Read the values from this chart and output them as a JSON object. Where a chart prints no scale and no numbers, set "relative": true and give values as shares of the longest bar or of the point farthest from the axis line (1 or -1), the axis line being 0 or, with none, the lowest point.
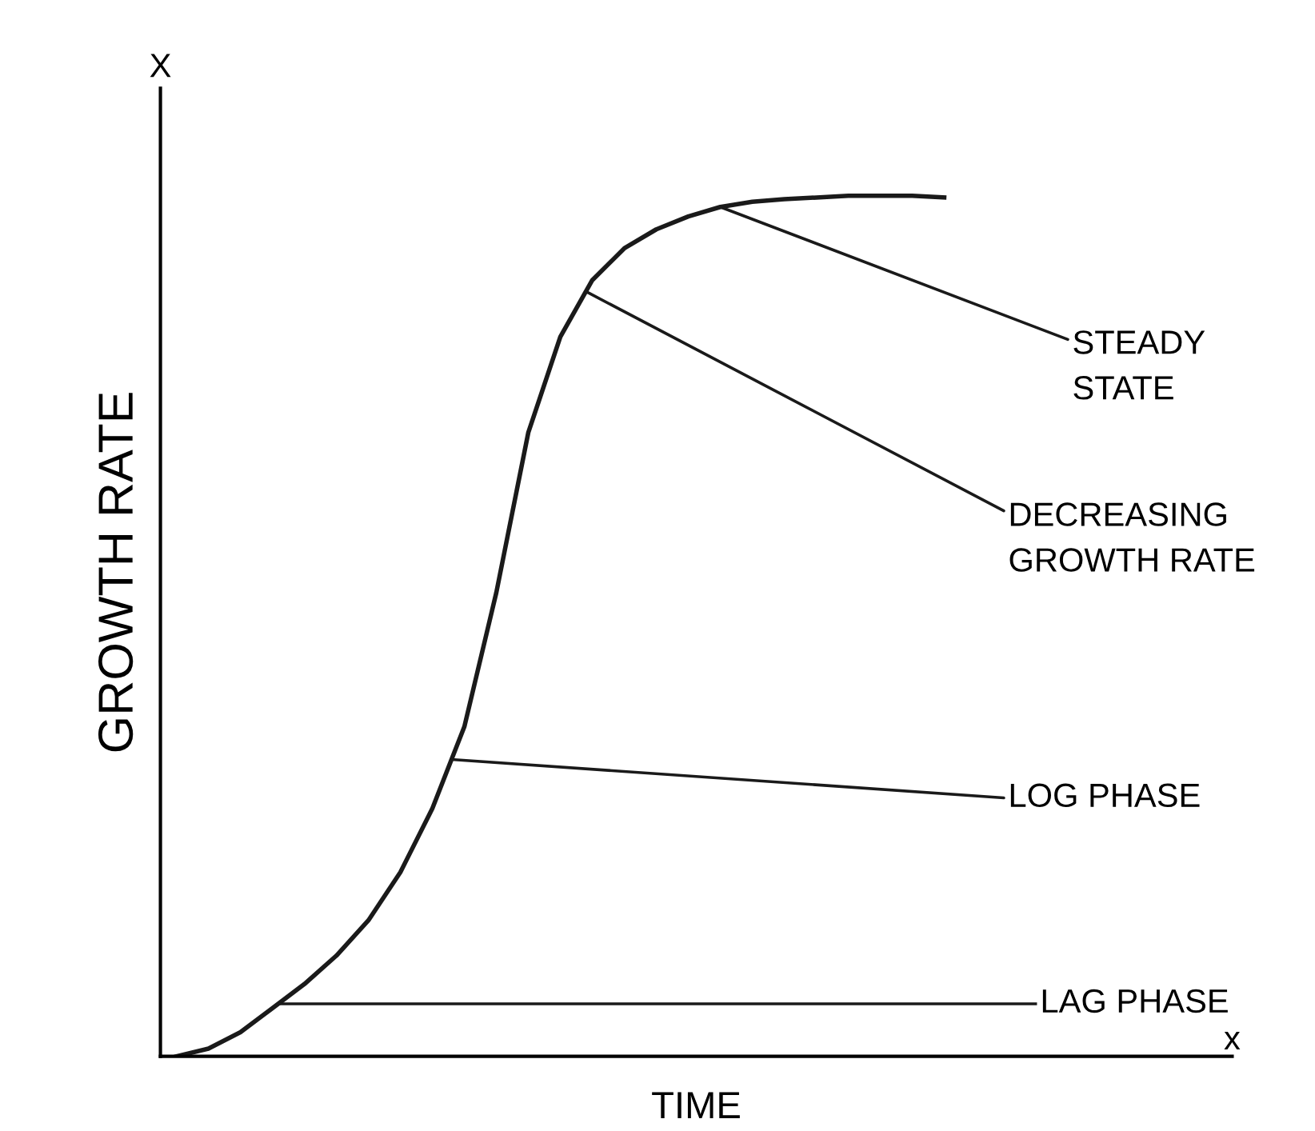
{
  "chart_data": {
    "type": "line",
    "relative": true,
    "xlabel": "TIME",
    "ylabel": "GROWTH RATE",
    "color": "#1a1a1a",
    "categories": [
      null,
      null,
      null,
      null,
      null,
      null,
      null,
      null,
      null,
      null,
      null,
      null,
      null,
      null,
      null,
      null,
      null,
      null,
      null,
      null,
      null,
      null,
      null,
      null,
      null
    ],
    "values": [
      0,
      0.009,
      0.028,
      0.056,
      0.084,
      0.117,
      0.158,
      0.214,
      0.288,
      0.383,
      0.539,
      0.725,
      0.836,
      0.902,
      0.939,
      0.961,
      0.976,
      0.987,
      0.993,
      0.996,
      0.998,
      1,
      1,
      1,
      0.998
    ],
    "annotations": [
      "X",
      "STEADY\nSTATE",
      "DECREASING\nGROWTH RATE",
      "LOG PHASE",
      "x"
    ],
    "ref_lines": [
      {
        "axis": "y",
        "value": 0.061,
        "label": "LAG PHASE"
      }
    ],
    "grid": false,
    "legend": false,
    "marker": "none",
    "line_style": "solid"
  }
}
